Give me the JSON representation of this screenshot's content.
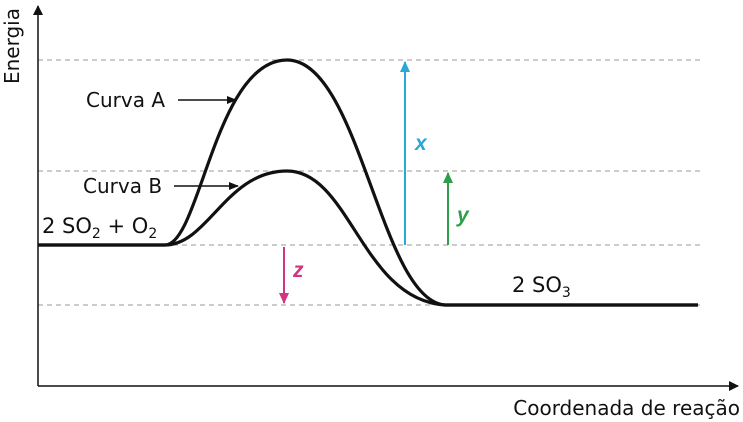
{
  "axes": {
    "y_label": "Energia",
    "x_label": "Coordenada de reação"
  },
  "curves": {
    "a_label": "Curva A",
    "b_label": "Curva B"
  },
  "species": {
    "reactants": {
      "text": "2 SO",
      "sub1": "2",
      "plus": " + O",
      "sub2": "2"
    },
    "product": {
      "text": "2 SO",
      "sub": "3"
    }
  },
  "arrows": {
    "x": {
      "label": "x",
      "color": "#29a8d6"
    },
    "y": {
      "label": "y",
      "color": "#2e9e4a"
    },
    "z": {
      "label": "z",
      "color": "#d2347f"
    }
  },
  "colors": {
    "curve": "#111111",
    "dashed": "#999999"
  }
}
